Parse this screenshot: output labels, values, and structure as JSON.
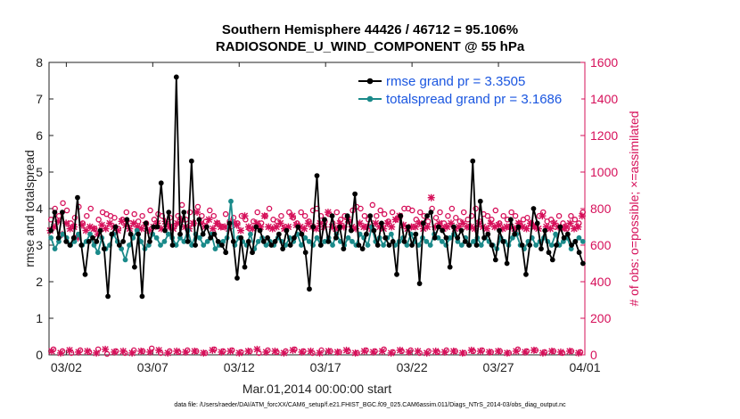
{
  "chart_data": {
    "type": "line",
    "title": "Southern Hemisphere 44426 / 46712 = 95.106%",
    "subtitle": "RADIOSONDE_U_WIND_COMPONENT @ 55 hPa",
    "xlabel": "Mar.01,2014 00:00:00 start",
    "ylabel_left": "rmse and totalspread",
    "ylabel_right": "# of obs: o=possible; ×=assimilated",
    "xlim": [
      0,
      31
    ],
    "ylim_left": [
      0,
      8
    ],
    "ylim_right": [
      0,
      1600
    ],
    "x_ticks": [
      {
        "day": 1,
        "label": "03/02"
      },
      {
        "day": 6,
        "label": "03/07"
      },
      {
        "day": 11,
        "label": "03/12"
      },
      {
        "day": 16,
        "label": "03/17"
      },
      {
        "day": 21,
        "label": "03/22"
      },
      {
        "day": 26,
        "label": "03/27"
      },
      {
        "day": 31,
        "label": "04/01"
      }
    ],
    "y_ticks_left": [
      "0",
      "1",
      "2",
      "3",
      "4",
      "5",
      "6",
      "7",
      "8"
    ],
    "y_ticks_right": [
      "0",
      "200",
      "400",
      "600",
      "800",
      "1000",
      "1200",
      "1400",
      "1600"
    ],
    "legend": [
      {
        "name": "rmse grand pr = 3.3505",
        "color": "#000000"
      },
      {
        "name": "totalspread grand pr = 3.1686",
        "color": "#1a8a8a"
      }
    ],
    "colors": {
      "rmse": "#000000",
      "spread": "#1a8a8a",
      "obs": "#d6105a",
      "legend_text": "#1a56e0",
      "right_axis": "#d6105a"
    },
    "series": [
      {
        "name": "rmse",
        "axis": "left",
        "values": [
          3.4,
          3.9,
          3.2,
          3.9,
          3.1,
          3.0,
          3.2,
          4.3,
          3.0,
          2.2,
          3.1,
          3.2,
          3.1,
          3.4,
          2.9,
          1.6,
          3.3,
          3.5,
          3.0,
          3.1,
          3.7,
          3.3,
          2.4,
          3.3,
          1.6,
          3.6,
          3.1,
          3.5,
          3.5,
          4.7,
          3.4,
          3.9,
          3.0,
          7.6,
          3.3,
          3.9,
          3.1,
          5.3,
          3.0,
          3.7,
          3.3,
          3.5,
          3.2,
          3.3,
          3.1,
          3.0,
          2.8,
          3.6,
          3.1,
          2.1,
          3.2,
          2.4,
          3.1,
          2.8,
          3.5,
          3.4,
          3.1,
          3.2,
          3.0,
          3.1,
          3.3,
          2.9,
          3.4,
          3.0,
          3.2,
          3.5,
          3.3,
          2.8,
          1.8,
          3.5,
          4.9,
          3.0,
          3.7,
          3.1,
          3.8,
          3.2,
          3.5,
          2.9,
          3.8,
          3.4,
          4.4,
          3.0,
          2.9,
          3.3,
          3.8,
          3.4,
          3.0,
          3.6,
          3.2,
          3.0,
          3.1,
          2.2,
          3.8,
          3.1,
          3.5,
          3.0,
          3.3,
          1.95,
          3.6,
          3.8,
          3.9,
          3.2,
          3.5,
          3.4,
          3.2,
          2.4,
          3.5,
          3.2,
          3.4,
          3.1,
          3.0,
          5.3,
          3.0,
          4.2,
          3.2,
          3.3,
          3.0,
          2.6,
          3.4,
          3.1,
          2.5,
          3.7,
          3.3,
          3.5,
          3.0,
          2.2,
          3.0,
          4.0,
          3.6,
          2.9,
          3.4,
          2.8,
          2.6,
          3.0,
          3.5,
          3.2,
          3.3,
          3.0,
          3.1,
          2.8,
          2.5
        ]
      },
      {
        "name": "totalspread",
        "axis": "left",
        "values": [
          3.2,
          2.9,
          3.1,
          3.3,
          3.2,
          3.0,
          3.1,
          3.3,
          3.0,
          3.1,
          3.3,
          3.0,
          2.8,
          3.2,
          2.9,
          3.0,
          3.3,
          3.1,
          2.9,
          2.6,
          3.0,
          3.2,
          3.4,
          3.1,
          2.9,
          3.0,
          3.3,
          3.2,
          3.0,
          3.1,
          3.3,
          3.2,
          3.0,
          3.2,
          3.1,
          3.4,
          3.0,
          3.3,
          3.2,
          3.0,
          3.1,
          3.3,
          2.9,
          3.0,
          3.1,
          3.2,
          4.2,
          3.0,
          3.2,
          3.1,
          3.0,
          3.3,
          2.9,
          3.1,
          3.2,
          3.0,
          3.1,
          3.0,
          3.2,
          3.1,
          3.0,
          3.2,
          3.1,
          3.3,
          3.0,
          3.2,
          3.1,
          3.0,
          3.2,
          3.0,
          3.1,
          3.2,
          3.0,
          3.3,
          3.1,
          3.0,
          3.2,
          3.1,
          3.0,
          3.3,
          3.2,
          3.0,
          3.5,
          3.1,
          3.2,
          3.0,
          3.2,
          3.3,
          3.0,
          3.1,
          3.2,
          3.0,
          3.3,
          3.1,
          3.0,
          3.2,
          3.1,
          3.0,
          3.3,
          3.2,
          3.1,
          3.0,
          3.2,
          3.3,
          3.1,
          3.0,
          3.2,
          3.0,
          3.1,
          3.2,
          3.0,
          3.2,
          3.1,
          3.0,
          2.9,
          3.2,
          3.1,
          3.0,
          3.2,
          3.3,
          3.0,
          2.9,
          3.1,
          3.2,
          3.0,
          3.1,
          3.2,
          3.1,
          3.0,
          3.3,
          3.0,
          3.1,
          3.2,
          2.9,
          3.1,
          3.2,
          3.1
        ]
      },
      {
        "name": "obs_possible",
        "axis": "right",
        "marker": "o",
        "values": [
          740,
          800,
          760,
          830,
          790,
          720,
          750,
          810,
          720,
          760,
          800,
          690,
          740,
          780,
          770,
          760,
          750,
          690,
          740,
          780,
          720,
          770,
          730,
          760,
          720,
          790,
          740,
          770,
          760,
          720,
          750,
          700,
          760,
          820,
          740,
          780,
          720,
          810,
          760,
          730,
          790,
          760,
          720,
          700,
          770,
          730,
          750,
          720,
          760,
          740,
          690,
          730,
          780,
          720,
          760,
          800,
          740,
          730,
          760,
          700,
          780,
          750,
          720,
          780,
          760,
          730,
          790,
          800,
          760,
          730,
          770,
          720,
          780,
          740,
          760,
          730,
          790,
          810,
          800,
          760,
          740,
          820,
          760,
          790,
          770,
          730,
          780,
          740,
          760,
          800,
          800,
          790,
          740,
          780,
          760,
          730,
          800,
          750,
          780,
          720,
          760,
          800,
          750,
          730,
          780,
          740,
          760,
          800,
          730,
          770,
          760,
          740,
          790,
          720,
          760,
          740,
          780,
          760,
          720,
          740,
          750,
          720,
          700,
          760,
          780,
          730,
          740,
          700,
          760,
          720,
          690,
          760,
          740,
          720,
          780
        ]
      },
      {
        "name": "obs_assimilated",
        "axis": "right",
        "marker": "x",
        "values": [
          680,
          700,
          730,
          660,
          720,
          690,
          700,
          640,
          710,
          680,
          700,
          690,
          660,
          710,
          690,
          720,
          700,
          680,
          730,
          710,
          690,
          720,
          700,
          690,
          710,
          680,
          700,
          720,
          690,
          730,
          700,
          690,
          720,
          740,
          700,
          690,
          720,
          780,
          720,
          700,
          740,
          690,
          720,
          700,
          700,
          690,
          720,
          710,
          680,
          760,
          700,
          690,
          720,
          700,
          760,
          700,
          690,
          700,
          720,
          690,
          700,
          760,
          710,
          700,
          690,
          720,
          700,
          690,
          720,
          700,
          780,
          700,
          690,
          720,
          700,
          740,
          700,
          690,
          720,
          700,
          700,
          690,
          720,
          700,
          690,
          720,
          700,
          740,
          760,
          710,
          690,
          700,
          700,
          720,
          690,
          700,
          860,
          700,
          720,
          690,
          700,
          720,
          690,
          700,
          720,
          700,
          700,
          690,
          720,
          700,
          690,
          720,
          700,
          710,
          690,
          700,
          700,
          690,
          720,
          700,
          690,
          720,
          700,
          690,
          760,
          700,
          690,
          720,
          700,
          690,
          700,
          720,
          690,
          700,
          760
        ]
      },
      {
        "name": "obs_rejected_possible",
        "axis": "right",
        "marker": "o",
        "values": [
          30,
          20,
          10,
          25,
          15,
          30,
          5,
          20,
          10,
          25,
          20,
          35,
          10,
          20,
          15,
          25,
          20,
          10,
          30,
          20,
          25,
          15,
          20,
          10,
          25,
          15,
          20,
          30,
          20,
          10,
          25,
          20,
          15,
          20,
          10,
          25,
          20,
          30,
          15,
          20,
          25,
          10,
          20,
          15,
          25,
          20,
          10,
          20,
          25,
          15,
          20,
          10,
          30,
          20,
          25,
          15,
          20,
          10,
          20,
          15
        ]
      },
      {
        "name": "obs_rejected_assimilated",
        "axis": "right",
        "marker": "x",
        "values": [
          20,
          10,
          25,
          15,
          20,
          10,
          30,
          15,
          20,
          10,
          20,
          15,
          25,
          10,
          20,
          15,
          20,
          10,
          25,
          15,
          20,
          10,
          20,
          30,
          15,
          20,
          10,
          25,
          15,
          20,
          10,
          20,
          15,
          25,
          10,
          20,
          15,
          20,
          10,
          25,
          15,
          20,
          10,
          20,
          15,
          20,
          10,
          25,
          20,
          15,
          20,
          10,
          20,
          15,
          25,
          10,
          20,
          15,
          20,
          10
        ]
      }
    ]
  },
  "footnote": "data file: /Users/raeder/DAI/ATM_forcXX/CAM6_setup/f.e21.FHIST_BGC.f09_025.CAM6assim.011/Diags_NTrS_2014-03/obs_diag_output.nc"
}
